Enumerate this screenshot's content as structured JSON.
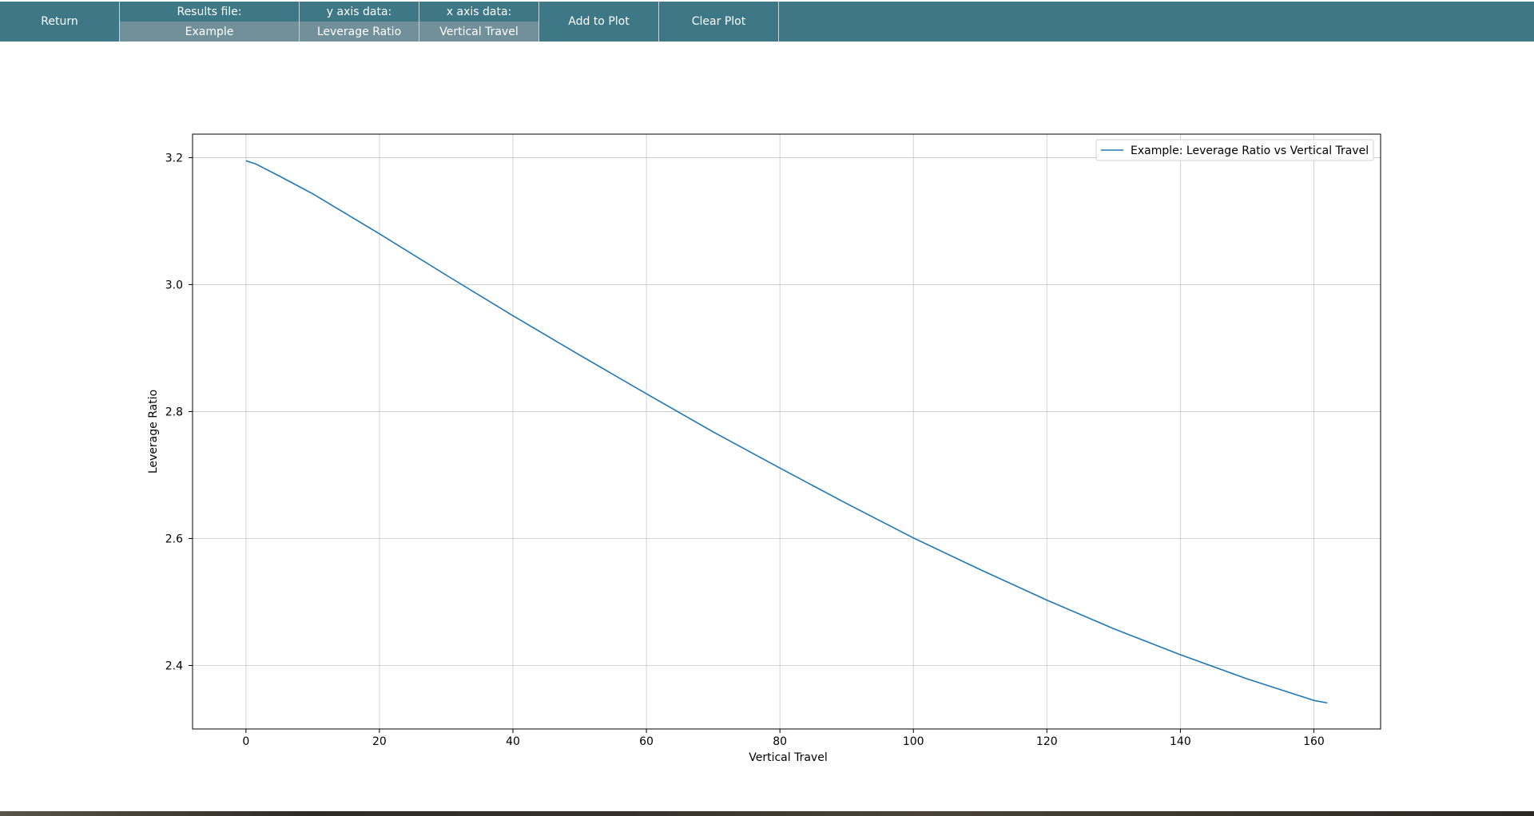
{
  "toolbar": {
    "return_label": "Return",
    "results_file": {
      "label": "Results file:",
      "value": "Example"
    },
    "y_axis": {
      "label": "y axis data:",
      "value": "Leverage Ratio"
    },
    "x_axis": {
      "label": "x axis data:",
      "value": "Vertical Travel"
    },
    "add_label": "Add to Plot",
    "clear_label": "Clear Plot"
  },
  "chart_data": {
    "type": "line",
    "title": "",
    "xlabel": "Vertical Travel",
    "ylabel": "Leverage Ratio",
    "xlim": [
      -8,
      170
    ],
    "ylim": [
      2.3,
      3.237
    ],
    "xticks": [
      0,
      20,
      40,
      60,
      80,
      100,
      120,
      140,
      160
    ],
    "xtick_labels": [
      "0",
      "20",
      "40",
      "60",
      "80",
      "100",
      "120",
      "140",
      "160"
    ],
    "yticks": [
      2.4,
      2.6,
      2.8,
      3.0,
      3.2
    ],
    "ytick_labels": [
      "2.4",
      "2.6",
      "2.8",
      "3.0",
      "3.2"
    ],
    "grid": true,
    "legend_position": "top-right",
    "series": [
      {
        "name": "Example: Leverage Ratio vs Vertical Travel",
        "color": "#1f77b4",
        "x": [
          0,
          1.5,
          5,
          10,
          20,
          30,
          40,
          50,
          60,
          70,
          80,
          90,
          100,
          110,
          120,
          130,
          140,
          150,
          160,
          162
        ],
        "y": [
          3.195,
          3.19,
          3.171,
          3.143,
          3.08,
          3.015,
          2.951,
          2.889,
          2.828,
          2.768,
          2.711,
          2.655,
          2.601,
          2.551,
          2.503,
          2.458,
          2.417,
          2.379,
          2.345,
          2.341
        ]
      }
    ]
  }
}
